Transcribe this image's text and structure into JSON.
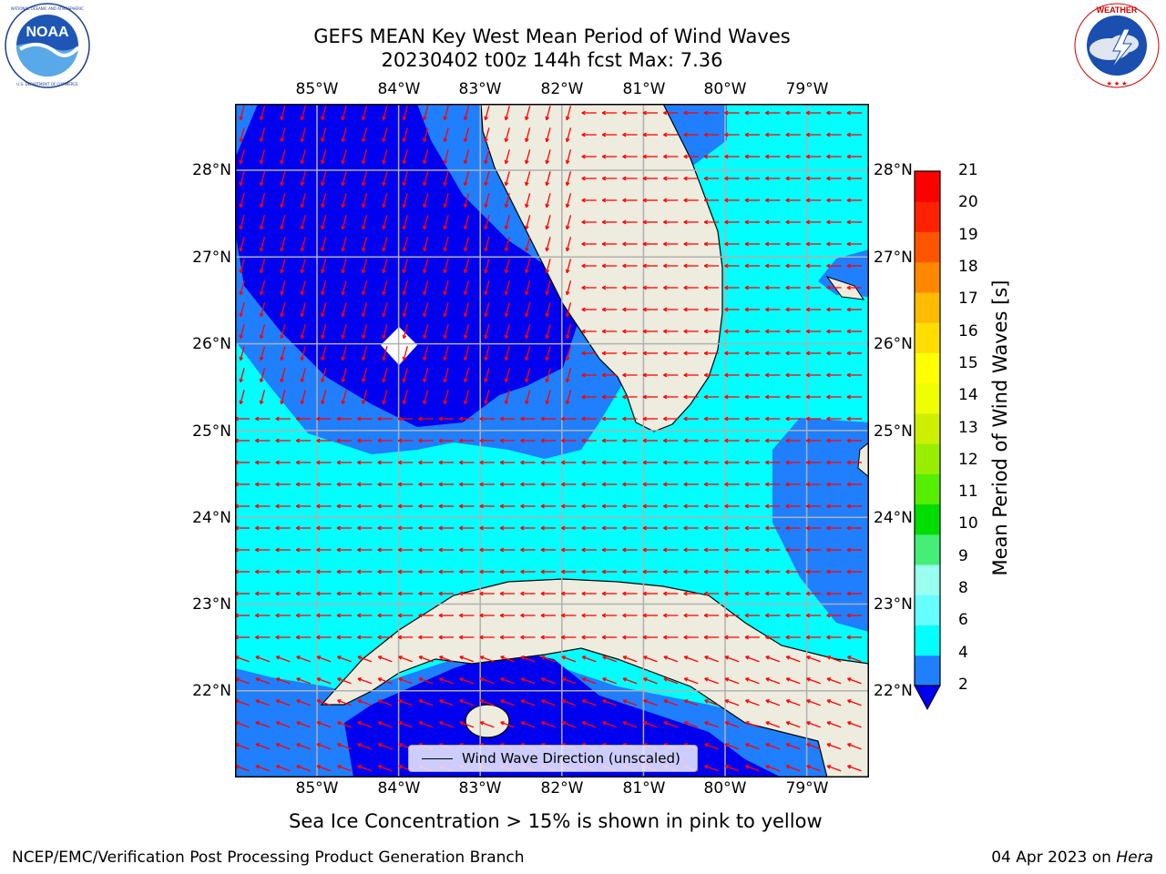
{
  "header": {
    "title_line1": "GEFS MEAN Key West Mean Period of Wind Waves",
    "title_line2": "20230402 t00z 144h fcst   Max: 7.36"
  },
  "logos": {
    "left": {
      "name": "NOAA",
      "ring_text": "NATIONAL OCEANIC AND ATMOSPHERIC ADMINISTRATION · U.S. DEPARTMENT OF COMMERCE",
      "icon": "noaa-logo"
    },
    "right": {
      "name": "NATIONAL WEATHER SERVICE",
      "icon": "nws-logo"
    }
  },
  "map": {
    "lon_labels": [
      "85°W",
      "84°W",
      "83°W",
      "82°W",
      "81°W",
      "80°W",
      "79°W"
    ],
    "lat_labels": [
      "28°N",
      "27°N",
      "26°N",
      "25°N",
      "24°N",
      "23°N",
      "22°N"
    ],
    "legend_text": "Wind Wave Direction (unscaled)",
    "arrow_color": "#ff0000",
    "land_color": "#eeecde",
    "fill_colors": {
      "2-4": "#0000f0",
      "4-6": "#1f7fff",
      "6-8": "#00ffff"
    }
  },
  "colorbar": {
    "label": "Mean Period of Wind Waves [s]",
    "ticks": [
      "2",
      "4",
      "6",
      "8",
      "9",
      "10",
      "11",
      "12",
      "13",
      "14",
      "15",
      "16",
      "17",
      "18",
      "19",
      "20",
      "21"
    ],
    "colors": [
      "#0000f0",
      "#1f7fff",
      "#00ffff",
      "#66ffff",
      "#99ffee",
      "#44ee77",
      "#00dd00",
      "#55ee00",
      "#99ee00",
      "#ccf000",
      "#eeff00",
      "#ffff00",
      "#ffdd00",
      "#ffbb00",
      "#ff8800",
      "#ff5500",
      "#ff2200",
      "#ff0000"
    ]
  },
  "footer": {
    "note": "Sea Ice Concentration > 15% is shown in pink to yellow",
    "left": "NCEP/EMC/Verification Post Processing Product Generation Branch",
    "right_date": "04 Apr 2023 on ",
    "right_host": "Hera"
  }
}
